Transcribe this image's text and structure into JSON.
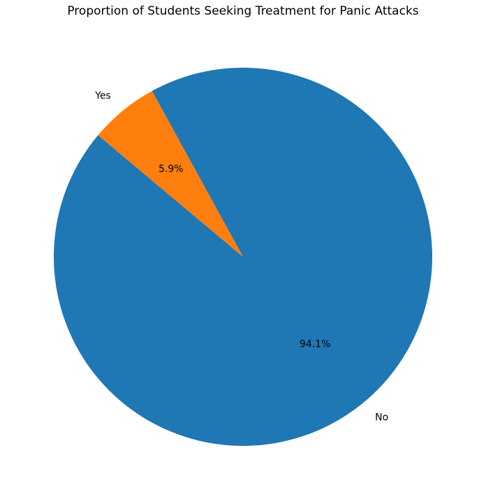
{
  "chart_data": {
    "type": "pie",
    "title": "Proportion of Students Seeking Treatment for Panic Attacks",
    "categories": [
      "No",
      "Yes"
    ],
    "values": [
      94.1,
      5.9
    ],
    "value_labels": [
      "94.1%",
      "5.9%"
    ],
    "colors": [
      "#1f77b4",
      "#ff7f0e"
    ],
    "start_angle_deg": 140,
    "direction": "counterclockwise",
    "legend": "none"
  }
}
